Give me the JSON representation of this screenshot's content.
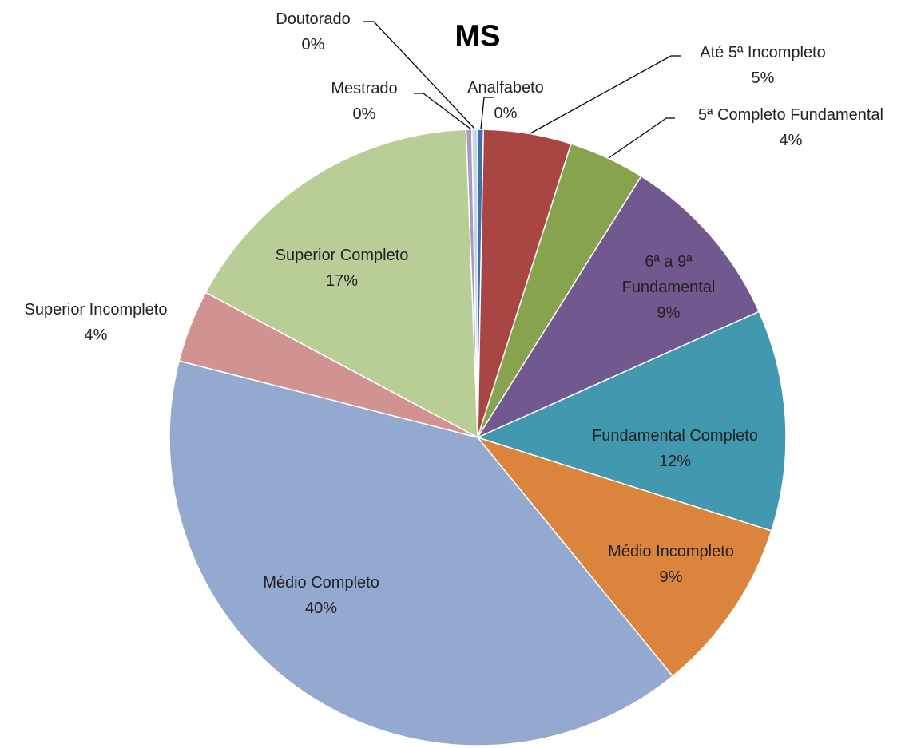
{
  "chart_data": {
    "type": "pie",
    "title": "MS",
    "categories": [
      "Analfabeto",
      "Até 5ª Incompleto",
      "5ª Completo Fundamental",
      "6ª a 9ª Fundamental",
      "Fundamental Completo",
      "Médio Incompleto",
      "Médio Completo",
      "Superior Incompleto",
      "Superior Completo",
      "Mestrado",
      "Doutorado"
    ],
    "values": [
      0.3,
      4.6,
      4.0,
      9.4,
      11.6,
      9.2,
      39.9,
      3.8,
      16.6,
      0.3,
      0.3
    ],
    "value_labels": [
      "0%",
      "5%",
      "4%",
      "9%",
      "12%",
      "9%",
      "40%",
      "4%",
      "17%",
      "0%",
      "0%"
    ],
    "colors": [
      "#3e6fae",
      "#a94543",
      "#87a34e",
      "#71588f",
      "#4298af",
      "#db843d",
      "#93a9cf",
      "#d19392",
      "#b9cd96",
      "#a99bbd",
      "#c6d6ec"
    ]
  }
}
